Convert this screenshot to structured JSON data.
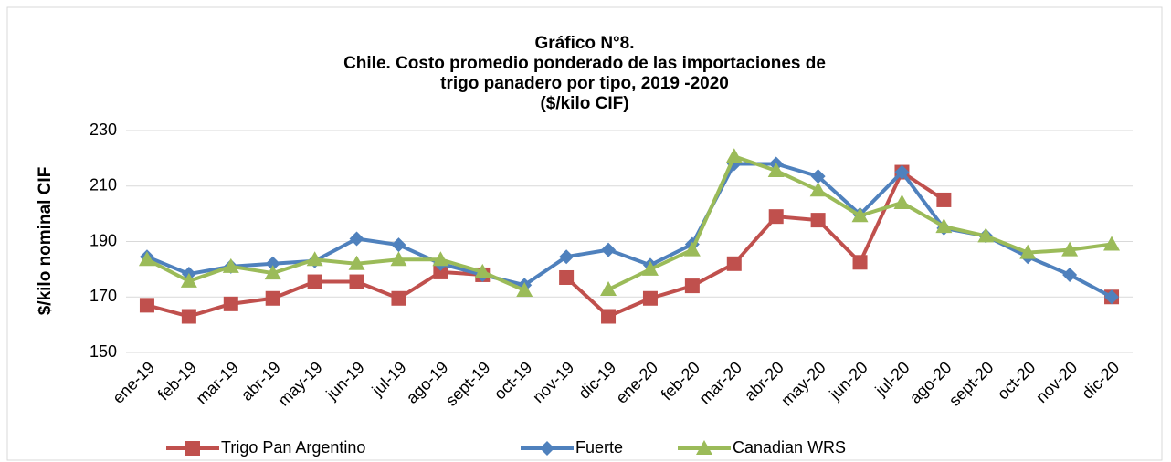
{
  "chart_data": {
    "type": "line",
    "title": [
      "Gráfico N°8.",
      "Chile. Costo promedio ponderado de las importaciones de",
      "trigo panadero por tipo, 2019 -2020",
      "($/kilo CIF)"
    ],
    "ylabel": "$/kilo nominal CIF",
    "categories": [
      "ene-19",
      "feb-19",
      "mar-19",
      "abr-19",
      "may-19",
      "jun-19",
      "jul-19",
      "ago-19",
      "sept-19",
      "oct-19",
      "nov-19",
      "dic-19",
      "ene-20",
      "feb-20",
      "mar-20",
      "abr-20",
      "may-20",
      "jun-20",
      "jul-20",
      "ago-20",
      "sept-20",
      "oct-20",
      "nov-20",
      "dic-20"
    ],
    "series": [
      {
        "name": "Trigo Pan Argentino",
        "color": "#c0504d",
        "marker": "square",
        "values": [
          167,
          163,
          167.5,
          169.5,
          175.5,
          175.5,
          169.5,
          179,
          178,
          null,
          177,
          163,
          169.5,
          174,
          182,
          199,
          197.7,
          182.5,
          215,
          205,
          null,
          null,
          null,
          170
        ]
      },
      {
        "name": "Fuerte",
        "color": "#4f81bd",
        "marker": "diamond",
        "values": [
          184.5,
          178.3,
          181,
          182,
          183,
          191,
          188.8,
          182,
          178,
          174.3,
          184.5,
          187,
          181.5,
          189,
          218,
          218,
          213.5,
          199.7,
          215,
          194.8,
          192,
          184.5,
          178,
          170
        ]
      },
      {
        "name": "Canadian WRS",
        "color": "#9bbb59",
        "marker": "triangle",
        "values": [
          183.5,
          175.7,
          181,
          178.6,
          183.5,
          182,
          183.5,
          183.5,
          179,
          172.4,
          null,
          172.7,
          180,
          187,
          220.7,
          215.5,
          208.5,
          199.3,
          204,
          195.4,
          192,
          186,
          187,
          189
        ]
      }
    ],
    "ylim": [
      150,
      230
    ],
    "yticks": [
      150,
      170,
      190,
      210,
      230
    ],
    "grid": true,
    "legend": "bottom"
  }
}
